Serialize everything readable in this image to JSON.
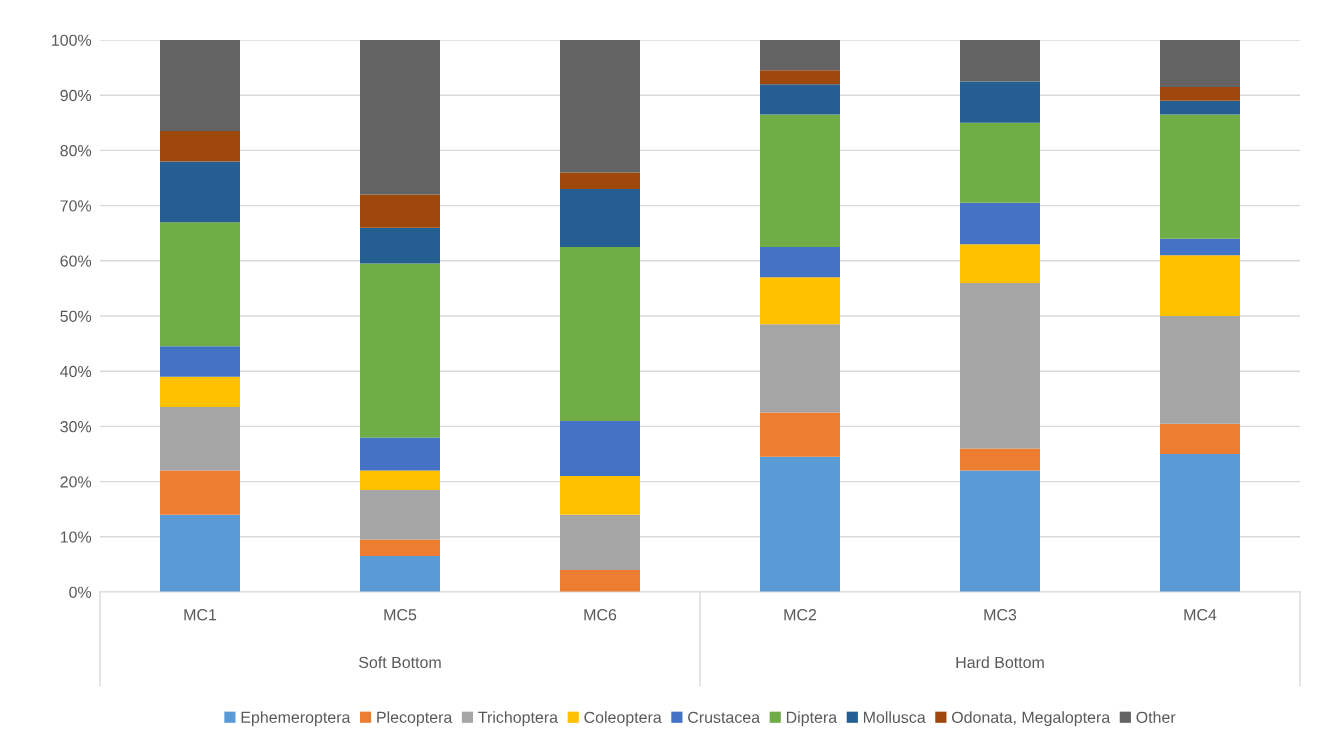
{
  "chart_data": {
    "type": "bar",
    "stacked": true,
    "categories": [
      "MC1",
      "MC5",
      "MC6",
      "MC2",
      "MC3",
      "MC4"
    ],
    "series": [
      {
        "name": "Ephemeroptera",
        "color": "#5b9bd5",
        "values": [
          14,
          6.5,
          0,
          24.5,
          22,
          25
        ]
      },
      {
        "name": "Plecoptera",
        "color": "#ed7d31",
        "values": [
          8,
          3,
          4,
          8,
          4,
          5.5
        ]
      },
      {
        "name": "Trichoptera",
        "color": "#a5a5a5",
        "values": [
          11.5,
          9,
          10,
          16,
          30,
          19.5
        ]
      },
      {
        "name": "Coleoptera",
        "color": "#ffc000",
        "values": [
          5.5,
          3.5,
          7,
          8.5,
          7,
          11
        ]
      },
      {
        "name": "Crustacea",
        "color": "#4472c4",
        "values": [
          5.5,
          6,
          10,
          5.5,
          7.5,
          3
        ]
      },
      {
        "name": "Diptera",
        "color": "#70ad47",
        "values": [
          22.5,
          31.5,
          31.5,
          24,
          14.5,
          22.5
        ]
      },
      {
        "name": "Mollusca",
        "color": "#255e91",
        "values": [
          11,
          6.5,
          10.5,
          5.5,
          7.5,
          2.5
        ]
      },
      {
        "name": "Odonata, Megaloptera",
        "color": "#9e480e",
        "values": [
          5.5,
          6,
          3,
          2.5,
          0,
          2.5
        ]
      },
      {
        "name": "Other",
        "color": "#636363",
        "values": [
          16.5,
          28,
          24,
          5.5,
          7.5,
          8.5
        ]
      }
    ],
    "ylim": [
      0,
      100
    ],
    "yticks": [
      {
        "value": 0,
        "label": "0%"
      },
      {
        "value": 10,
        "label": "10%"
      },
      {
        "value": 20,
        "label": "20%"
      },
      {
        "value": 30,
        "label": "30%"
      },
      {
        "value": 40,
        "label": "40%"
      },
      {
        "value": 50,
        "label": "50%"
      },
      {
        "value": 60,
        "label": "60%"
      },
      {
        "value": 70,
        "label": "70%"
      },
      {
        "value": 80,
        "label": "80%"
      },
      {
        "value": 90,
        "label": "90%"
      },
      {
        "value": 100,
        "label": "100%"
      }
    ],
    "grid": "y",
    "legend": "bottom",
    "annotations": [
      "Soft Bottom",
      "Hard Bottom"
    ]
  }
}
